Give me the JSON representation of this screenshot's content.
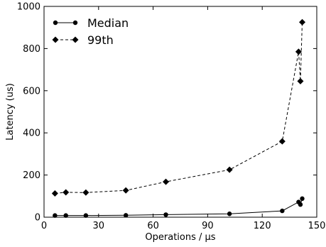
{
  "chart_data": {
    "type": "line",
    "title": "",
    "xlabel": "Operations / μs",
    "ylabel": "Latency (us)",
    "xlim": [
      0,
      150
    ],
    "ylim": [
      0,
      1000
    ],
    "xticks": [
      0,
      30,
      60,
      90,
      120,
      150
    ],
    "yticks": [
      0,
      200,
      400,
      600,
      800,
      1000
    ],
    "grid": false,
    "legend_position": "top-left",
    "series": [
      {
        "name": "Median",
        "marker": "circle",
        "line_style": "solid",
        "color": "#000000",
        "points": [
          {
            "x": 6,
            "y": 8
          },
          {
            "x": 12,
            "y": 8
          },
          {
            "x": 23,
            "y": 8
          },
          {
            "x": 45,
            "y": 9
          },
          {
            "x": 67,
            "y": 12
          },
          {
            "x": 102,
            "y": 16
          },
          {
            "x": 131,
            "y": 30
          },
          {
            "x": 140,
            "y": 72
          },
          {
            "x": 141,
            "y": 60
          },
          {
            "x": 142,
            "y": 88
          }
        ]
      },
      {
        "name": "99th",
        "marker": "diamond",
        "line_style": "dashed",
        "color": "#000000",
        "points": [
          {
            "x": 6,
            "y": 113
          },
          {
            "x": 12,
            "y": 118
          },
          {
            "x": 23,
            "y": 117
          },
          {
            "x": 45,
            "y": 127
          },
          {
            "x": 67,
            "y": 168
          },
          {
            "x": 102,
            "y": 225
          },
          {
            "x": 131,
            "y": 360
          },
          {
            "x": 140,
            "y": 785
          },
          {
            "x": 141,
            "y": 645
          },
          {
            "x": 142,
            "y": 925
          }
        ]
      }
    ]
  }
}
